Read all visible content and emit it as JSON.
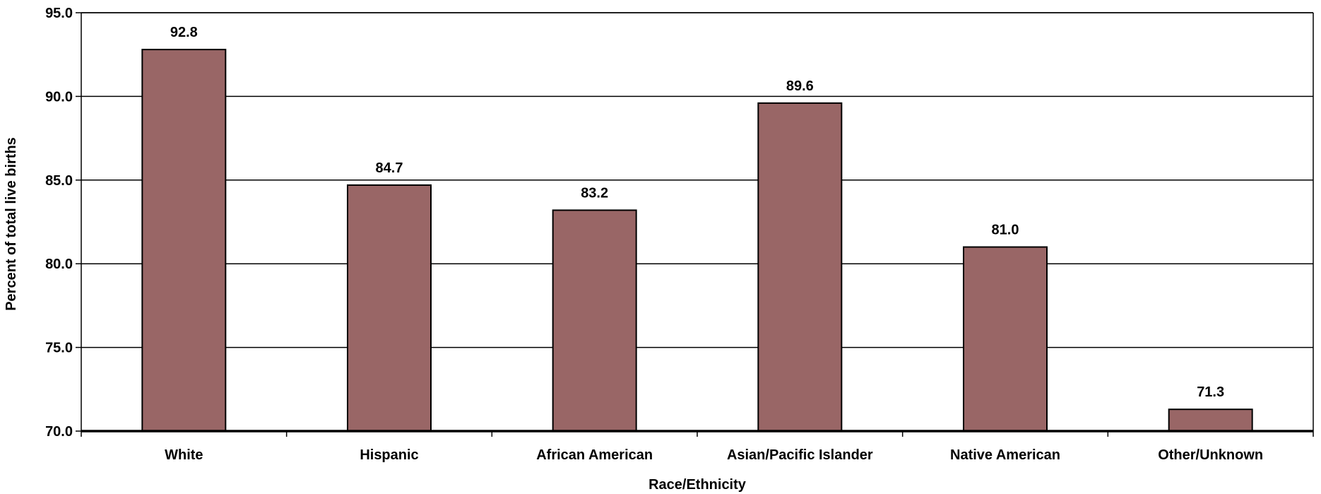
{
  "chart_data": {
    "type": "bar",
    "title": "",
    "xlabel": "Race/Ethnicity",
    "ylabel": "Percent of total live births",
    "categories": [
      "White",
      "Hispanic",
      "African American",
      "Asian/Pacific Islander",
      "Native American",
      "Other/Unknown"
    ],
    "values": [
      92.8,
      84.7,
      83.2,
      89.6,
      81.0,
      71.3
    ],
    "value_labels": [
      "92.8",
      "84.7",
      "83.2",
      "89.6",
      "81.0",
      "71.3"
    ],
    "ylim": [
      70,
      95
    ],
    "yticks": [
      70,
      75,
      80,
      85,
      90,
      95
    ],
    "ytick_labels": [
      "70.0",
      "75.0",
      "80.0",
      "85.0",
      "90.0",
      "95.0"
    ],
    "grid": true,
    "legend": "none",
    "colors": {
      "bar_fill": "#996666",
      "bar_stroke": "#000000",
      "grid": "#000000",
      "text": "#000000"
    }
  }
}
